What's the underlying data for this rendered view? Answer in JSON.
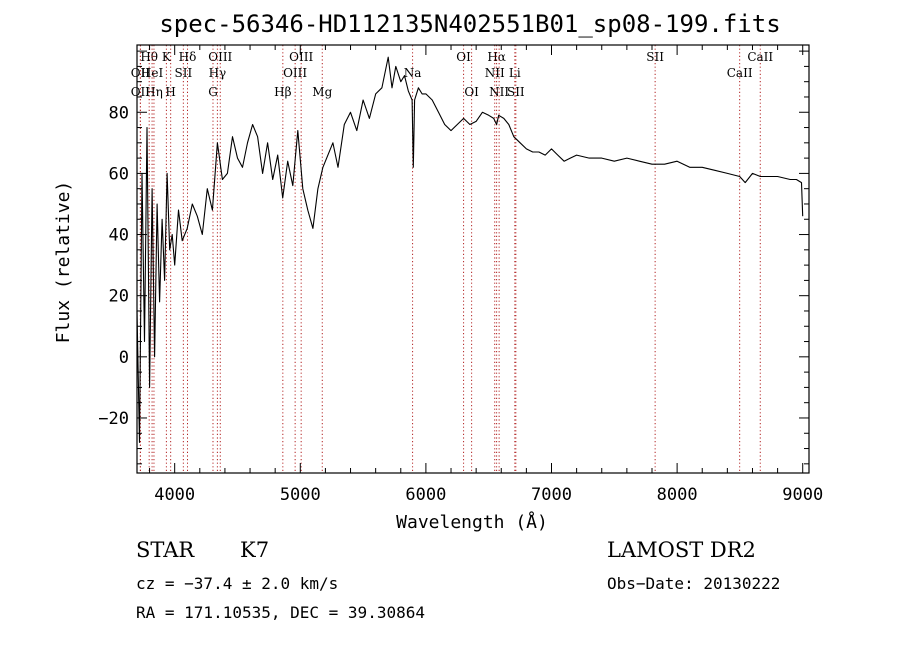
{
  "colors": {
    "axis": "#000000",
    "spectrum": "#000000",
    "line_marker": "#b22222"
  },
  "chart_data": {
    "type": "line",
    "title": "spec-56346-HD112135N402551B01_sp08-199.fits",
    "xlabel": "Wavelength (Å)",
    "ylabel": "Flux (relative)",
    "xlim": [
      3700,
      9050
    ],
    "ylim": [
      -38,
      102
    ],
    "xticks": [
      4000,
      5000,
      6000,
      7000,
      8000,
      9000
    ],
    "yticks": [
      -20,
      0,
      20,
      40,
      60,
      80
    ],
    "grid": false,
    "series": [
      {
        "name": "flux",
        "x": [
          3700,
          3720,
          3740,
          3760,
          3780,
          3800,
          3820,
          3840,
          3860,
          3880,
          3900,
          3920,
          3940,
          3960,
          3980,
          4000,
          4030,
          4060,
          4100,
          4140,
          4180,
          4220,
          4260,
          4300,
          4340,
          4380,
          4420,
          4460,
          4500,
          4540,
          4580,
          4620,
          4660,
          4700,
          4740,
          4780,
          4820,
          4860,
          4900,
          4940,
          4980,
          5020,
          5060,
          5100,
          5140,
          5180,
          5220,
          5260,
          5300,
          5350,
          5400,
          5450,
          5500,
          5550,
          5600,
          5650,
          5700,
          5730,
          5760,
          5800,
          5830,
          5860,
          5890,
          5900,
          5910,
          5940,
          5970,
          6000,
          6050,
          6100,
          6150,
          6200,
          6250,
          6300,
          6350,
          6400,
          6450,
          6500,
          6540,
          6563,
          6580,
          6620,
          6660,
          6700,
          6750,
          6800,
          6850,
          6900,
          6950,
          7000,
          7050,
          7100,
          7150,
          7200,
          7300,
          7400,
          7500,
          7600,
          7700,
          7800,
          7900,
          8000,
          8100,
          8200,
          8300,
          8400,
          8498,
          8542,
          8600,
          8662,
          8700,
          8800,
          8900,
          8950,
          8990,
          9000
        ],
        "values": [
          15,
          -28,
          60,
          5,
          75,
          -10,
          55,
          0,
          50,
          18,
          45,
          25,
          60,
          35,
          40,
          30,
          48,
          38,
          42,
          50,
          46,
          40,
          55,
          48,
          70,
          58,
          60,
          72,
          65,
          62,
          70,
          76,
          72,
          60,
          70,
          58,
          66,
          52,
          64,
          56,
          74,
          55,
          48,
          42,
          55,
          62,
          66,
          70,
          62,
          76,
          80,
          74,
          84,
          78,
          86,
          88,
          98,
          88,
          95,
          90,
          92,
          87,
          84,
          62,
          84,
          88,
          86,
          86,
          84,
          80,
          76,
          74,
          76,
          78,
          76,
          77,
          80,
          79,
          78,
          76,
          79,
          78,
          76,
          72,
          70,
          68,
          67,
          67,
          66,
          68,
          66,
          64,
          65,
          66,
          65,
          65,
          64,
          65,
          64,
          63,
          63,
          64,
          62,
          62,
          61,
          60,
          59,
          57,
          60,
          59,
          59,
          59,
          58,
          58,
          57,
          46
        ]
      }
    ],
    "line_markers": [
      {
        "label": "Hθ",
        "x": 3797,
        "row": 1
      },
      {
        "label": "OII",
        "x": 3727,
        "row": 2
      },
      {
        "label": "HeI",
        "x": 3820,
        "row": 2
      },
      {
        "label": "OII",
        "x": 3727,
        "row": 3
      },
      {
        "label": "Hη",
        "x": 3835,
        "row": 3
      },
      {
        "label": "K",
        "x": 3934,
        "row": 1
      },
      {
        "label": "H",
        "x": 3968,
        "row": 3
      },
      {
        "label": "SII",
        "x": 4069,
        "row": 2
      },
      {
        "label": "Hδ",
        "x": 4102,
        "row": 1
      },
      {
        "label": "OIII",
        "x": 4363,
        "row": 1
      },
      {
        "label": "Hγ",
        "x": 4340,
        "row": 2
      },
      {
        "label": "G",
        "x": 4305,
        "row": 3
      },
      {
        "label": "Hβ",
        "x": 4861,
        "row": 3
      },
      {
        "label": "OIII",
        "x": 4959,
        "row": 2
      },
      {
        "label": "OIII",
        "x": 5007,
        "row": 1
      },
      {
        "label": "Mg",
        "x": 5175,
        "row": 3
      },
      {
        "label": "Na",
        "x": 5894,
        "row": 2
      },
      {
        "label": "OI",
        "x": 6300,
        "row": 1
      },
      {
        "label": "OI",
        "x": 6364,
        "row": 3
      },
      {
        "label": "Hα",
        "x": 6563,
        "row": 1
      },
      {
        "label": "NII",
        "x": 6548,
        "row": 2
      },
      {
        "label": "NII",
        "x": 6583,
        "row": 3
      },
      {
        "label": "Li",
        "x": 6708,
        "row": 2
      },
      {
        "label": "SII",
        "x": 6716,
        "row": 3
      },
      {
        "label": "SII",
        "x": 7825,
        "row": 1
      },
      {
        "label": "CaII",
        "x": 8498,
        "row": 2
      },
      {
        "label": "CaII",
        "x": 8662,
        "row": 1
      }
    ]
  },
  "footer": {
    "star_label": "STAR",
    "spectral_type": "K7",
    "cz": "cz = −37.4 ± 2.0 km/s",
    "coords": "RA = 171.10535, DEC =  39.30864",
    "survey": "LAMOST DR2",
    "obs_date": "Obs−Date: 20130222"
  }
}
